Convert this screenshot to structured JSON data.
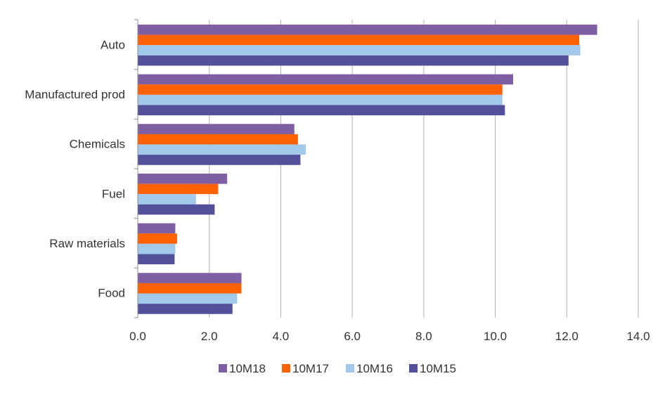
{
  "chart_data": {
    "type": "bar",
    "orientation": "horizontal",
    "title": "",
    "xlabel": "",
    "ylabel": "",
    "categories": [
      "Auto",
      "Manufactured prod",
      "Chemicals",
      "Fuel",
      "Raw materials",
      "Food"
    ],
    "series": [
      {
        "name": "10M18",
        "color": "#7E5FA3",
        "values": [
          12.85,
          10.5,
          4.38,
          2.5,
          1.05,
          2.9
        ]
      },
      {
        "name": "10M17",
        "color": "#FF6200",
        "values": [
          12.35,
          10.2,
          4.48,
          2.25,
          1.1,
          2.9
        ]
      },
      {
        "name": "10M16",
        "color": "#A3C9EA",
        "values": [
          12.38,
          10.2,
          4.7,
          1.63,
          1.05,
          2.78
        ]
      },
      {
        "name": "10M15",
        "color": "#52509A",
        "values": [
          12.05,
          10.27,
          4.55,
          2.15,
          1.03,
          2.65
        ]
      }
    ],
    "xlim": [
      0,
      14
    ],
    "xticks": [
      "0.0",
      "2.0",
      "4.0",
      "6.0",
      "8.0",
      "10.0",
      "12.0",
      "14.0"
    ],
    "grid": "vertical",
    "legend_position": "bottom"
  }
}
